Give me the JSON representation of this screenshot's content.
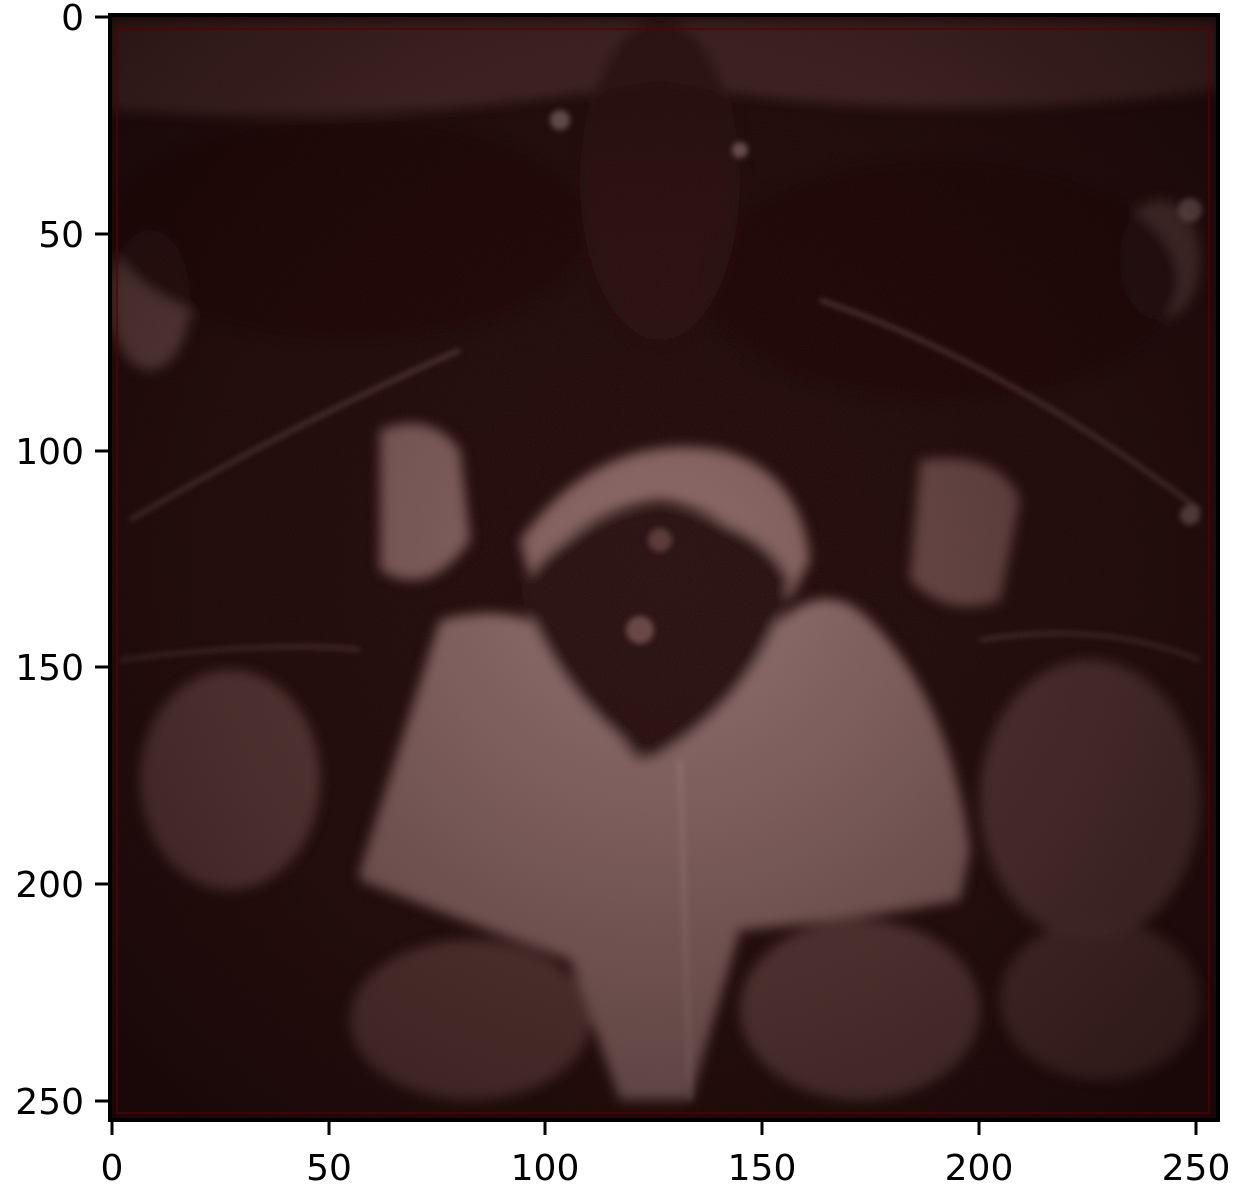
{
  "image": {
    "description_kind": "mri-axial-slice",
    "colormap": "dark-red-tinted-grayscale",
    "background_color": "#1a0606",
    "tissue_color": "#8a6a68",
    "highlight_color": "#b49694",
    "overlay_color": "#5a0000"
  },
  "x_axis": {
    "ticks": [
      "0",
      "50",
      "100",
      "150",
      "200",
      "250"
    ],
    "tick_values": [
      0,
      50,
      100,
      150,
      200,
      250
    ],
    "range": [
      0,
      255
    ]
  },
  "y_axis": {
    "ticks": [
      "0",
      "50",
      "100",
      "150",
      "200",
      "250"
    ],
    "tick_values": [
      0,
      50,
      100,
      150,
      200,
      250
    ],
    "range": [
      0,
      255
    ]
  }
}
